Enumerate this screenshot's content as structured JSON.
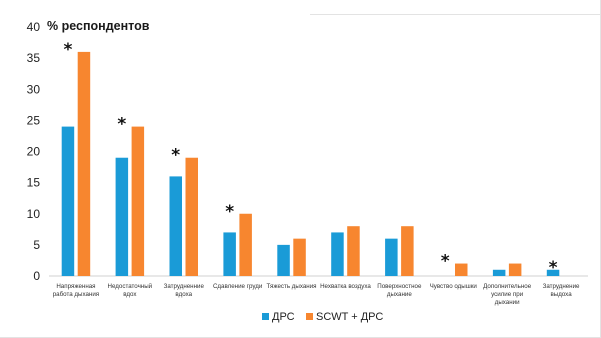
{
  "chart_data": {
    "type": "bar",
    "ylabel": "% респондентов",
    "ylim": [
      0,
      40
    ],
    "yticks": [
      0,
      5,
      10,
      15,
      20,
      25,
      30,
      35,
      40
    ],
    "grid": false,
    "legend_position": "bottom",
    "categories": [
      [
        "Напряженная",
        "работа дыхания"
      ],
      [
        "Недостаточный",
        "вдох"
      ],
      [
        "Затрудненние",
        "вдоха"
      ],
      [
        "Сдавление груди"
      ],
      [
        "Тяжесть дыхания"
      ],
      [
        "Нехватка воздуха"
      ],
      [
        "Поверхностное",
        "дыхание"
      ],
      [
        "Чувство одышки"
      ],
      [
        "Дополнительное",
        "усилие при",
        "дыхании"
      ],
      [
        "Затруднение",
        "выдоха"
      ]
    ],
    "series": [
      {
        "name": "ДРС",
        "color": "#1a9bd7",
        "values": [
          24,
          19,
          16,
          7,
          5,
          7,
          6,
          0,
          1,
          1
        ]
      },
      {
        "name": "SCWT + ДРС",
        "color": "#f7862f",
        "values": [
          36,
          24,
          19,
          10,
          6,
          8,
          8,
          2,
          2,
          0
        ]
      }
    ],
    "significance_marker": "*",
    "significant": [
      true,
      true,
      true,
      true,
      false,
      false,
      false,
      true,
      false,
      true
    ]
  }
}
